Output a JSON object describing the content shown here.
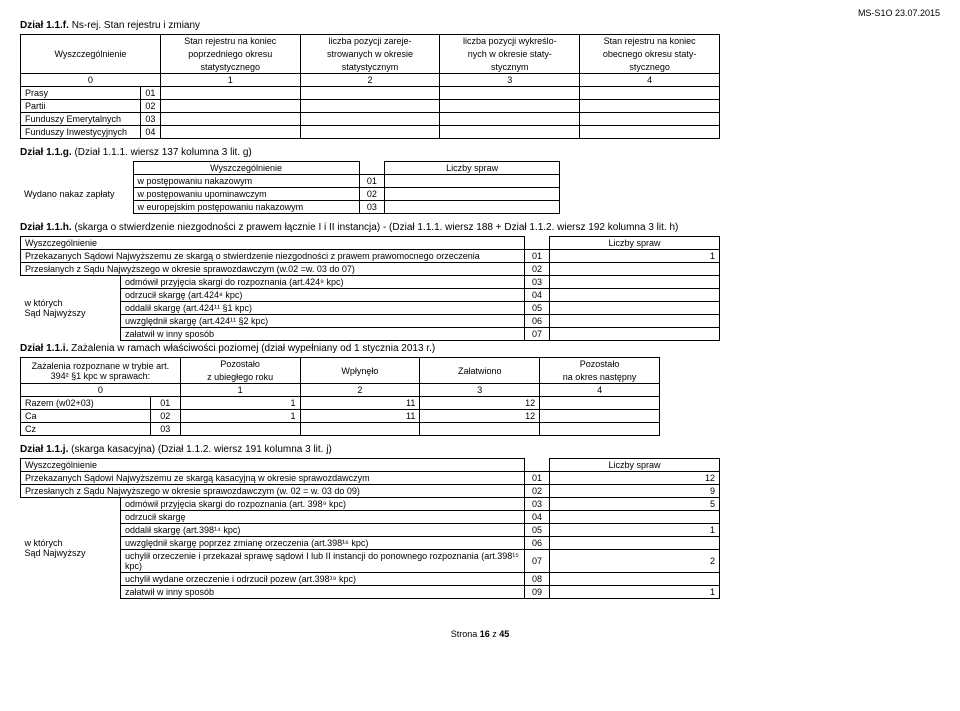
{
  "page": {
    "code": "MS-S1O 23.07.2015",
    "footer_prefix": "Strona ",
    "footer_page": "16",
    "footer_mid": " z ",
    "footer_total": "45"
  },
  "f": {
    "title": "Dział 1.1.f.",
    "subtitle": "Ns-rej. Stan rejestru i zmiany",
    "headers": {
      "wysz": "Wyszczególnienie",
      "c1a": "Stan rejestru na koniec",
      "c1b": "poprzedniego okresu",
      "c1c": "statystycznego",
      "c2a": "liczba pozycji zareje-",
      "c2b": "strowanych w okresie",
      "c2c": "statystycznym",
      "c3a": "liczba pozycji wykreślo-",
      "c3b": "nych w okresie staty-",
      "c3c": "stycznym",
      "c4a": "Stan rejestru na koniec",
      "c4b": "obecnego okresu staty-",
      "c4c": "stycznego"
    },
    "nums": [
      "0",
      "1",
      "2",
      "3",
      "4"
    ],
    "rows": [
      {
        "label": "Prasy",
        "code": "01"
      },
      {
        "label": "Partii",
        "code": "02"
      },
      {
        "label": "Funduszy Emerytalnych",
        "code": "03"
      },
      {
        "label": "Funduszy Inwestycyjnych",
        "code": "04"
      }
    ]
  },
  "g": {
    "title": "Dział 1.1.g.",
    "subtitle": "(Dział 1.1.1. wiersz 137 kolumna 3 lit. g)",
    "headers": {
      "wysz": "Wyszczególnienie",
      "liczby": "Liczby spraw"
    },
    "groupLabel": "Wydano nakaz zapłaty",
    "rows": [
      {
        "label": "w postępowaniu nakazowym",
        "code": "01"
      },
      {
        "label": "w postępowaniu upominawczym",
        "code": "02"
      },
      {
        "label": "w europejskim postępowaniu nakazowym",
        "code": "03"
      }
    ]
  },
  "h": {
    "title": "Dział 1.1.h.",
    "subtitle": "(skarga o stwierdzenie niezgodności z prawem łącznie I i II instancja) - (Dział 1.1.1. wiersz 188 + Dział 1.1.2. wiersz 192 kolumna 3 lit. h)",
    "headers": {
      "wysz": "Wyszczególnienie",
      "liczby": "Liczby spraw"
    },
    "rows": [
      {
        "label": "Przekazanych Sądowi Najwyższemu ze skargą o stwierdzenie niezgodności z prawem prawomocnego orzeczenia",
        "code": "01",
        "val": "1"
      },
      {
        "label": "Przesłanych z Sądu Najwyższego w okresie sprawozdawczym (w.02 =w. 03 do 07)",
        "code": "02",
        "val": ""
      }
    ],
    "groupLabel": "w których\nSąd Najwyższy",
    "subrows": [
      {
        "label": "odmówił przyjęcia skargi do rozpoznania (art.424⁹ kpc)",
        "code": "03"
      },
      {
        "label": "odrzucił skargę (art.424⁸ kpc)",
        "code": "04"
      },
      {
        "label": "oddalił skargę (art.424¹¹ §1 kpc)",
        "code": "05"
      },
      {
        "label": "uwzględnił skargę (art.424¹¹ §2 kpc)",
        "code": "06"
      },
      {
        "label": "załatwił w inny sposób",
        "code": "07"
      }
    ]
  },
  "i": {
    "title": "Dział 1.1.i.",
    "subtitle": "Zażalenia w ramach właściwości poziomej (dział wypełniany od 1 stycznia 2013 r.)",
    "headers": {
      "h1a": "Zażalenia rozpoznane w trybie art.",
      "h1b": "394² §1 kpc  w sprawach:",
      "c1a": "Pozostało",
      "c1b": "z ubiegłego roku",
      "c2": "Wpłynęło",
      "c3": "Załatwiono",
      "c4a": "Pozostało",
      "c4b": "na okres następny"
    },
    "nums": [
      "0",
      "1",
      "2",
      "3",
      "4"
    ],
    "rows": [
      {
        "label": "Razem (w02+03)",
        "code": "01",
        "v1": "1",
        "v2": "11",
        "v3": "12",
        "v4": ""
      },
      {
        "label": "Ca",
        "code": "02",
        "v1": "1",
        "v2": "11",
        "v3": "12",
        "v4": ""
      },
      {
        "label": "Cz",
        "code": "03",
        "v1": "",
        "v2": "",
        "v3": "",
        "v4": ""
      }
    ]
  },
  "j": {
    "title": "Dział 1.1.j.",
    "subtitle": "(skarga kasacyjna) (Dział 1.1.2.  wiersz 191 kolumna 3 lit. j)",
    "headers": {
      "wysz": "Wyszczególnienie",
      "liczby": "Liczby spraw"
    },
    "rows": [
      {
        "label": "Przekazanych Sądowi Najwyższemu ze skargą kasacyjną w okresie sprawozdawczym",
        "code": "01",
        "val": "12"
      },
      {
        "label": "Przesłanych z Sądu Najwyższego w okresie sprawozdawczym (w. 02 = w. 03 do 09)",
        "code": "02",
        "val": "9"
      }
    ],
    "groupLabel": "w których\nSąd Najwyższy",
    "subrows": [
      {
        "label": "odmówił przyjęcia skargi do rozpoznania (art. 398⁹ kpc)",
        "code": "03",
        "val": "5"
      },
      {
        "label": "odrzucił skargę",
        "code": "04",
        "val": ""
      },
      {
        "label": "oddalił skargę (art.398¹⁴ kpc)",
        "code": "05",
        "val": "1"
      },
      {
        "label": "uwzględnił skargę poprzez zmianę orzeczenia (art.398¹⁶ kpc)",
        "code": "06",
        "val": ""
      },
      {
        "label": "uchylił orzeczenie i przekazał sprawę sądowi I lub II instancji do ponownego rozpoznania (art.398¹⁵ kpc)",
        "code": "07",
        "val": "2"
      },
      {
        "label": "uchylił wydane orzeczenie i odrzucił pozew (art.398¹⁹ kpc)",
        "code": "08",
        "val": ""
      },
      {
        "label": "załatwił w inny sposób",
        "code": "09",
        "val": "1"
      }
    ]
  }
}
